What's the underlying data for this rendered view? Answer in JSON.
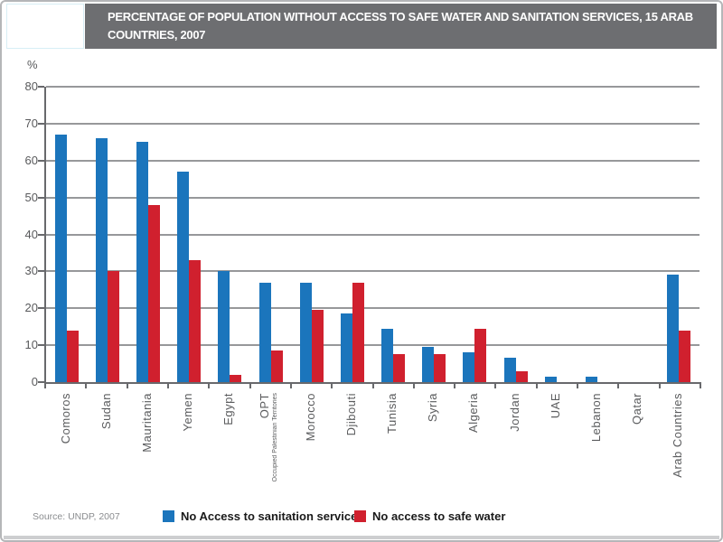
{
  "header": {
    "title_line1": "PERCENTAGE OF POPULATION WITHOUT ACCESS TO SAFE WATER AND SANITATION SERVICES, 15 ARAB",
    "title_line2": "COUNTRIES, 2007"
  },
  "source": "Source: UNDP, 2007",
  "legend": [
    {
      "key": "sanitation",
      "label": "No Access to sanitation services",
      "color": "#1B75BC"
    },
    {
      "key": "safe-water",
      "label": "No access to safe water",
      "color": "#D0202E"
    }
  ],
  "colors": {
    "header_bg": "#6d6e71",
    "grid": "#97989a",
    "axis": "#68696c",
    "tick_text": "#58595b"
  },
  "chart_data": {
    "type": "bar",
    "title": "PERCENTAGE OF POPULATION WITHOUT ACCESS TO SAFE WATER AND SANITATION SERVICES, 15 ARAB COUNTRIES, 2007",
    "xlabel": "",
    "ylabel": "%",
    "ylim": [
      0,
      80
    ],
    "ytick_interval": 10,
    "grid": true,
    "legend_position": "bottom",
    "source": "Source: UNDP, 2007",
    "categories": [
      "Comoros",
      "Sudan",
      "Mauritania",
      "Yemen",
      "Egypt",
      "OPT",
      "Morocco",
      "Djibouti",
      "Tunisia",
      "Syria",
      "Algeria",
      "Jordan",
      "UAE",
      "Lebanon",
      "Qatar",
      "Arab Countries"
    ],
    "sublabel": {
      "category": "OPT",
      "text": "Occupied Palestinian Territories"
    },
    "series": [
      {
        "key": "sanitation",
        "name": "No Access to sanitation services",
        "color": "#1B75BC",
        "values": [
          67,
          66,
          65,
          57,
          30,
          27,
          27,
          18.5,
          14.5,
          9.5,
          8,
          6.5,
          1.5,
          1.5,
          0,
          29
        ]
      },
      {
        "key": "safe-water",
        "name": "No access to safe water",
        "color": "#D0202E",
        "values": [
          14,
          30,
          48,
          33,
          2,
          8.5,
          19.5,
          27,
          7.5,
          7.5,
          14.5,
          3,
          0,
          0,
          0,
          14
        ]
      }
    ]
  }
}
